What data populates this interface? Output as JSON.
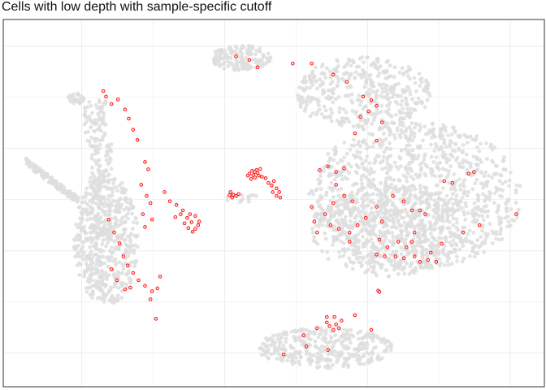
{
  "title": "Cells with low depth with sample-specific cutoff",
  "colors": {
    "background_cells": "#dedede",
    "highlighted_cells": "#ff0000",
    "panel_border": "#333333",
    "grid": "#ebebeb"
  },
  "chart_data": {
    "type": "scatter",
    "title": "Cells with low depth with sample-specific cutoff",
    "xlabel": "",
    "ylabel": "",
    "grid": true,
    "legend": "none",
    "series": [
      {
        "role": "all cells",
        "color": "#dedede",
        "style": "filled grey points",
        "regions": [
          {
            "region": "top-left-arm",
            "x": [
              0.12,
              0.15
            ],
            "y": [
              0.77,
              0.8
            ]
          },
          {
            "region": "left-vertical-arm",
            "x": [
              0.14,
              0.19
            ],
            "y": [
              0.4,
              0.78
            ]
          },
          {
            "region": "left-horizontal-arm",
            "x": [
              0.04,
              0.14
            ],
            "y": [
              0.48,
              0.62
            ]
          },
          {
            "region": "left-main-body",
            "x": [
              0.13,
              0.25
            ],
            "y": [
              0.22,
              0.58
            ]
          },
          {
            "region": "top-middle-islet",
            "x": [
              0.385,
              0.495
            ],
            "y": [
              0.86,
              0.93
            ]
          },
          {
            "region": "small-central-dots",
            "x": [
              0.41,
              0.47
            ],
            "y": [
              0.5,
              0.53
            ]
          },
          {
            "region": "right-upper-arc",
            "x": [
              0.54,
              0.79
            ],
            "y": [
              0.7,
              0.9
            ]
          },
          {
            "region": "right-main-body",
            "x": [
              0.565,
              0.96
            ],
            "y": [
              0.32,
              0.72
            ]
          },
          {
            "region": "right-lower-body",
            "x": [
              0.57,
              0.85
            ],
            "y": [
              0.3,
              0.55
            ]
          },
          {
            "region": "bottom-cluster",
            "x": [
              0.47,
              0.72
            ],
            "y": [
              0.05,
              0.16
            ]
          }
        ]
      },
      {
        "role": "low depth cells",
        "color": "#ff0000",
        "style": "small red open circles",
        "points": [
          [
            0.185,
            0.805
          ],
          [
            0.19,
            0.79
          ],
          [
            0.2,
            0.77
          ],
          [
            0.212,
            0.782
          ],
          [
            0.225,
            0.755
          ],
          [
            0.232,
            0.73
          ],
          [
            0.24,
            0.7
          ],
          [
            0.248,
            0.672
          ],
          [
            0.262,
            0.612
          ],
          [
            0.268,
            0.592
          ],
          [
            0.255,
            0.55
          ],
          [
            0.265,
            0.52
          ],
          [
            0.272,
            0.5
          ],
          [
            0.258,
            0.47
          ],
          [
            0.262,
            0.435
          ],
          [
            0.275,
            0.455
          ],
          [
            0.195,
            0.455
          ],
          [
            0.205,
            0.42
          ],
          [
            0.215,
            0.39
          ],
          [
            0.222,
            0.355
          ],
          [
            0.23,
            0.33
          ],
          [
            0.24,
            0.31
          ],
          [
            0.25,
            0.29
          ],
          [
            0.262,
            0.275
          ],
          [
            0.275,
            0.26
          ],
          [
            0.285,
            0.268
          ],
          [
            0.272,
            0.238
          ],
          [
            0.29,
            0.3
          ],
          [
            0.235,
            0.27
          ],
          [
            0.225,
            0.265
          ],
          [
            0.21,
            0.29
          ],
          [
            0.2,
            0.32
          ],
          [
            0.298,
            0.53
          ],
          [
            0.308,
            0.505
          ],
          [
            0.32,
            0.495
          ],
          [
            0.332,
            0.48
          ],
          [
            0.345,
            0.47
          ],
          [
            0.355,
            0.465
          ],
          [
            0.362,
            0.45
          ],
          [
            0.348,
            0.448
          ],
          [
            0.34,
            0.46
          ],
          [
            0.335,
            0.445
          ],
          [
            0.355,
            0.43
          ],
          [
            0.36,
            0.44
          ],
          [
            0.342,
            0.432
          ],
          [
            0.35,
            0.422
          ],
          [
            0.328,
            0.47
          ],
          [
            0.318,
            0.462
          ],
          [
            0.282,
            0.185
          ],
          [
            0.42,
            0.53
          ],
          [
            0.425,
            0.523
          ],
          [
            0.43,
            0.52
          ],
          [
            0.423,
            0.515
          ],
          [
            0.435,
            0.525
          ],
          [
            0.418,
            0.522
          ],
          [
            0.455,
            0.58
          ],
          [
            0.46,
            0.588
          ],
          [
            0.465,
            0.585
          ],
          [
            0.47,
            0.582
          ],
          [
            0.472,
            0.575
          ],
          [
            0.478,
            0.572
          ],
          [
            0.465,
            0.57
          ],
          [
            0.458,
            0.566
          ],
          [
            0.485,
            0.568
          ],
          [
            0.49,
            0.555
          ],
          [
            0.496,
            0.548
          ],
          [
            0.5,
            0.56
          ],
          [
            0.505,
            0.54
          ],
          [
            0.51,
            0.53
          ],
          [
            0.512,
            0.515
          ],
          [
            0.505,
            0.52
          ],
          [
            0.498,
            0.53
          ],
          [
            0.468,
            0.59
          ],
          [
            0.475,
            0.593
          ],
          [
            0.462,
            0.576
          ],
          [
            0.452,
            0.575
          ],
          [
            0.43,
            0.9
          ],
          [
            0.455,
            0.89
          ],
          [
            0.47,
            0.87
          ],
          [
            0.535,
            0.88
          ],
          [
            0.57,
            0.88
          ],
          [
            0.61,
            0.85
          ],
          [
            0.635,
            0.83
          ],
          [
            0.665,
            0.79
          ],
          [
            0.68,
            0.78
          ],
          [
            0.69,
            0.765
          ],
          [
            0.675,
            0.75
          ],
          [
            0.66,
            0.735
          ],
          [
            0.7,
            0.72
          ],
          [
            0.65,
            0.69
          ],
          [
            0.69,
            0.67
          ],
          [
            0.585,
            0.59
          ],
          [
            0.6,
            0.6
          ],
          [
            0.615,
            0.585
          ],
          [
            0.63,
            0.595
          ],
          [
            0.615,
            0.55
          ],
          [
            0.63,
            0.52
          ],
          [
            0.645,
            0.505
          ],
          [
            0.61,
            0.5
          ],
          [
            0.595,
            0.47
          ],
          [
            0.605,
            0.44
          ],
          [
            0.62,
            0.43
          ],
          [
            0.64,
            0.42
          ],
          [
            0.655,
            0.44
          ],
          [
            0.67,
            0.46
          ],
          [
            0.69,
            0.49
          ],
          [
            0.72,
            0.52
          ],
          [
            0.74,
            0.505
          ],
          [
            0.755,
            0.48
          ],
          [
            0.77,
            0.48
          ],
          [
            0.78,
            0.47
          ],
          [
            0.7,
            0.45
          ],
          [
            0.695,
            0.4
          ],
          [
            0.71,
            0.38
          ],
          [
            0.725,
            0.355
          ],
          [
            0.74,
            0.35
          ],
          [
            0.76,
            0.355
          ],
          [
            0.77,
            0.34
          ],
          [
            0.785,
            0.345
          ],
          [
            0.8,
            0.34
          ],
          [
            0.745,
            0.38
          ],
          [
            0.73,
            0.395
          ],
          [
            0.755,
            0.395
          ],
          [
            0.79,
            0.365
          ],
          [
            0.705,
            0.355
          ],
          [
            0.69,
            0.36
          ],
          [
            0.81,
            0.39
          ],
          [
            0.76,
            0.42
          ],
          [
            0.86,
            0.58
          ],
          [
            0.87,
            0.585
          ],
          [
            0.815,
            0.56
          ],
          [
            0.83,
            0.555
          ],
          [
            0.85,
            0.42
          ],
          [
            0.88,
            0.44
          ],
          [
            0.948,
            0.47
          ],
          [
            0.64,
            0.395
          ],
          [
            0.575,
            0.45
          ],
          [
            0.58,
            0.42
          ],
          [
            0.57,
            0.49
          ],
          [
            0.693,
            0.262
          ],
          [
            0.695,
            0.258
          ],
          [
            0.56,
            0.11
          ],
          [
            0.555,
            0.14
          ],
          [
            0.598,
            0.19
          ],
          [
            0.612,
            0.19
          ],
          [
            0.598,
            0.175
          ],
          [
            0.603,
            0.165
          ],
          [
            0.615,
            0.17
          ],
          [
            0.62,
            0.16
          ],
          [
            0.61,
            0.155
          ],
          [
            0.625,
            0.18
          ],
          [
            0.65,
            0.195
          ],
          [
            0.68,
            0.155
          ],
          [
            0.6,
            0.1
          ],
          [
            0.518,
            0.088
          ],
          [
            0.58,
            0.16
          ]
        ]
      }
    ]
  }
}
